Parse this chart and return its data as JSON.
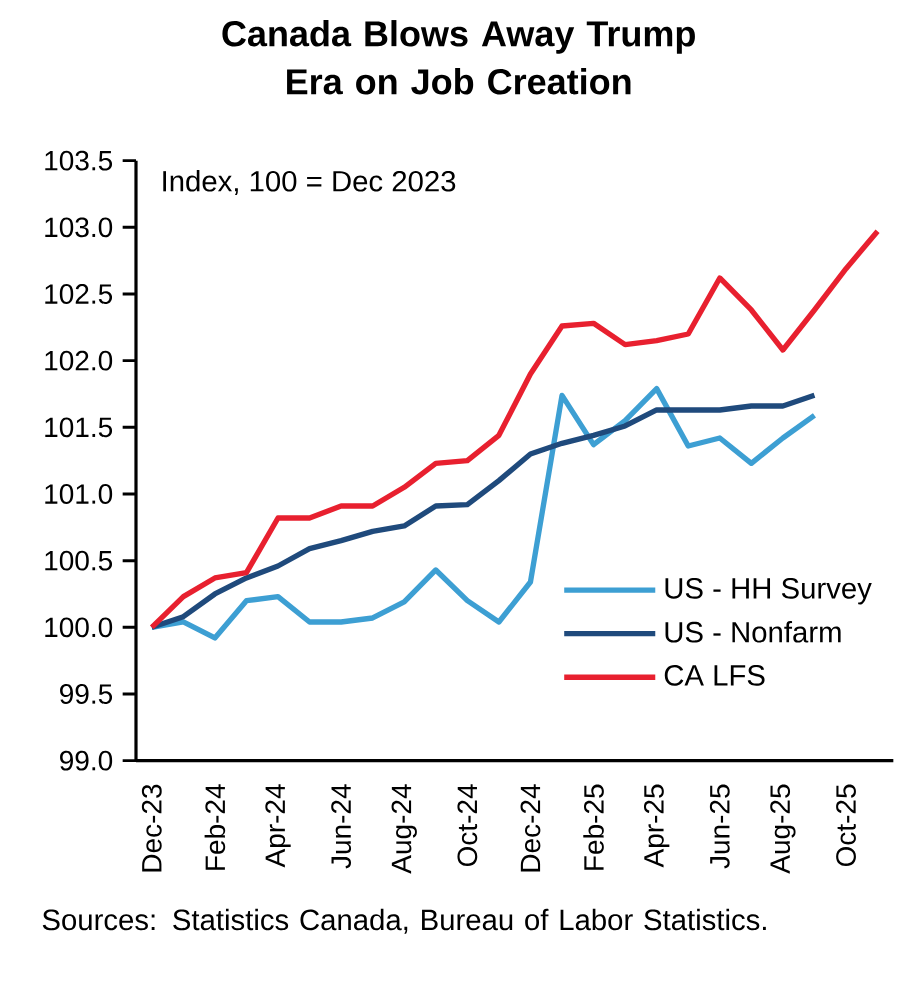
{
  "chart_data": {
    "type": "line",
    "title": "Canada Blows Away Trump Era on Job Creation",
    "subtitle": "Index, 100 = Dec 2023",
    "categories": [
      "Dec-23",
      null,
      "Feb-24",
      null,
      "Apr-24",
      null,
      "Jun-24",
      null,
      "Aug-24",
      null,
      "Oct-24",
      null,
      "Dec-24",
      null,
      "Feb-25",
      null,
      "Apr-25",
      null,
      "Jun-25",
      null,
      "Aug-25",
      null,
      "Oct-25",
      null
    ],
    "series": [
      {
        "name": "US - HH Survey",
        "color": "#3d9fd3",
        "values": [
          100.0,
          100.04,
          99.92,
          100.2,
          100.23,
          100.04,
          100.04,
          100.07,
          100.19,
          100.43,
          100.2,
          100.04,
          100.34,
          101.74,
          101.37,
          101.55,
          101.79,
          101.36,
          101.42,
          101.23,
          101.42,
          101.59,
          null,
          null
        ]
      },
      {
        "name": "US - Nonfarm",
        "color": "#1f4a7c",
        "values": [
          100.0,
          100.08,
          100.25,
          100.37,
          100.46,
          100.59,
          100.65,
          100.72,
          100.76,
          100.91,
          100.92,
          101.1,
          101.3,
          101.38,
          101.44,
          101.51,
          101.63,
          101.63,
          101.63,
          101.66,
          101.66,
          101.74,
          null,
          null
        ]
      },
      {
        "name": "CA LFS",
        "color": "#e8202f",
        "values": [
          100.0,
          100.23,
          100.37,
          100.41,
          100.82,
          100.82,
          100.91,
          100.91,
          101.05,
          101.23,
          101.25,
          101.44,
          101.9,
          102.26,
          102.28,
          102.12,
          102.15,
          102.2,
          102.62,
          102.38,
          102.08,
          102.38,
          102.69,
          102.97
        ]
      }
    ],
    "ylim": [
      99.0,
      103.5
    ],
    "yticks": [
      {
        "value": 99.0,
        "label": "99.0"
      },
      {
        "value": 99.5,
        "label": "99.5"
      },
      {
        "value": 100.0,
        "label": "100.0"
      },
      {
        "value": 100.5,
        "label": "100.5"
      },
      {
        "value": 101.0,
        "label": "101.0"
      },
      {
        "value": 101.5,
        "label": "101.5"
      },
      {
        "value": 102.0,
        "label": "102.0"
      },
      {
        "value": 102.5,
        "label": "102.5"
      },
      {
        "value": 103.0,
        "label": "103.0"
      },
      {
        "value": 103.5,
        "label": "103.5"
      }
    ],
    "grid": false,
    "legend": "bottom right",
    "marker": "none",
    "annotations": [
      "Sources: Statistics Canada, Bureau of Labor Statistics."
    ]
  }
}
